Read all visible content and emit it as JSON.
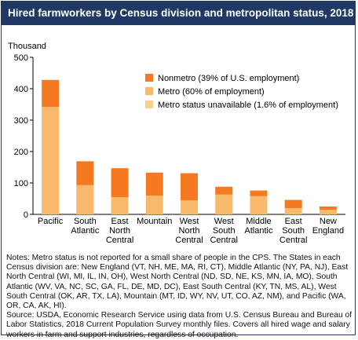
{
  "chart_data": {
    "type": "bar",
    "stacked": true,
    "title": "Hired farmworkers by Census division and metropolitan status, 2018",
    "ylabel": "Thousand",
    "ylim": [
      0,
      500
    ],
    "yticks": [
      0,
      100,
      200,
      300,
      400,
      500
    ],
    "grid": false,
    "legend_position": "top-right",
    "categories": [
      [
        "Pacific"
      ],
      [
        "South",
        "Atlantic"
      ],
      [
        "East",
        "North",
        "Central"
      ],
      [
        "Mountain"
      ],
      [
        "West",
        "North",
        "Central"
      ],
      [
        "West",
        "South",
        "Central"
      ],
      [
        "Middle",
        "Atlantic"
      ],
      [
        "East",
        "South",
        "Central"
      ],
      [
        "New",
        "England"
      ]
    ],
    "series": [
      {
        "name": "Metro status unavailable (1.6% of employment)",
        "color": "#fbcf8f",
        "values": [
          0,
          0,
          0,
          0,
          0,
          0,
          0,
          0,
          0
        ]
      },
      {
        "name": "Metro (60% of employment)",
        "color": "#f9b96d",
        "values": [
          342,
          93,
          55,
          60,
          45,
          63,
          58,
          20,
          15
        ]
      },
      {
        "name": "Nonmetro (39% of U.S. employment)",
        "color": "#f47920",
        "values": [
          86,
          76,
          92,
          73,
          86,
          25,
          18,
          26,
          10
        ]
      }
    ],
    "legend_order": [
      2,
      1,
      0
    ]
  },
  "notes": {
    "note_text": "Notes: Metro status is not reported for a small share of people in the CPS. The States in each Census division are: New England (VT, NH, ME, MA, RI, CT), Middle Atlantic (NY, PA, NJ), East North Central (WI, MI, IL, IN, OH), West North Central (ND, SD, NE, KS, MN, IA, MO), South Atlantic (WV, VA, NC, SC, GA, FL, DE, MD, DC), East South Central (KY, TN, MS, AL), West South Central (OK, AR, TX, LA), Mountain (MT, ID, WY, NV, UT, CO, AZ, NM), and Pacific (WA, OR, CA, AK, HI).",
    "source_text": "Source: USDA, Economic Research Service using data from U.S. Census Bureau and Bureau of Labor Statistics, 2018 Current Population Survey monthly files. Covers all hired wage and salary workers in farm and support industries, regardless of occupation."
  },
  "colors": {
    "title_bar": "#1f3864",
    "axis": "#000000"
  }
}
